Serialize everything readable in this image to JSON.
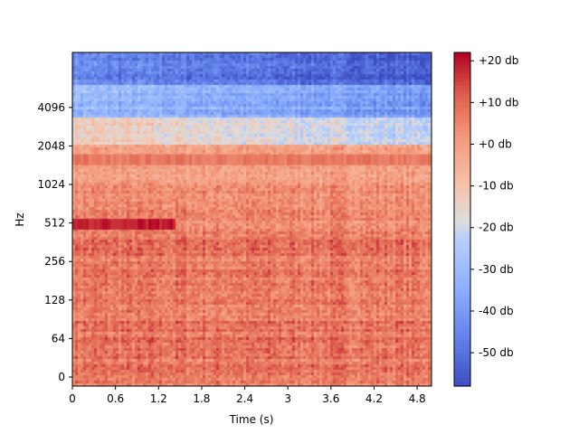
{
  "chart_data": {
    "type": "heatmap",
    "subtype": "spectrogram",
    "xlabel": "Time (s)",
    "ylabel": "Hz",
    "x_ticks": [
      "0",
      "0.6",
      "1.2",
      "1.8",
      "2.4",
      "3",
      "3.6",
      "4.2",
      "4.8"
    ],
    "x_tick_values": [
      0,
      0.6,
      1.2,
      1.8,
      2.4,
      3.0,
      3.6,
      4.2,
      4.8
    ],
    "xlim": [
      0,
      5.0
    ],
    "y_scale": "symlog",
    "y_ticks": [
      "0",
      "64",
      "128",
      "256",
      "512",
      "1024",
      "2048",
      "4096"
    ],
    "y_tick_values": [
      0,
      64,
      128,
      256,
      512,
      1024,
      2048,
      4096
    ],
    "ylim": [
      0,
      11025
    ],
    "colorbar": {
      "colormap": "coolwarm",
      "range_db": [
        -58,
        22
      ],
      "ticks": [
        "+20 db",
        "+10 db",
        "+0 db",
        "-10 db",
        "-20 db",
        "-30 db",
        "-40 db",
        "-50 db"
      ],
      "tick_values": [
        20,
        10,
        0,
        -10,
        -20,
        -30,
        -40,
        -50
      ]
    },
    "features": [
      {
        "description": "strong band",
        "frequency_hz": 500,
        "time_range_s": [
          0.0,
          1.4
        ],
        "level_db": 20
      },
      {
        "description": "horizontal harmonic band",
        "frequency_hz": 1600,
        "time_range_s": [
          0.0,
          5.0
        ],
        "level_db": 8
      }
    ],
    "grid": false,
    "legend": "colorbar-right"
  }
}
